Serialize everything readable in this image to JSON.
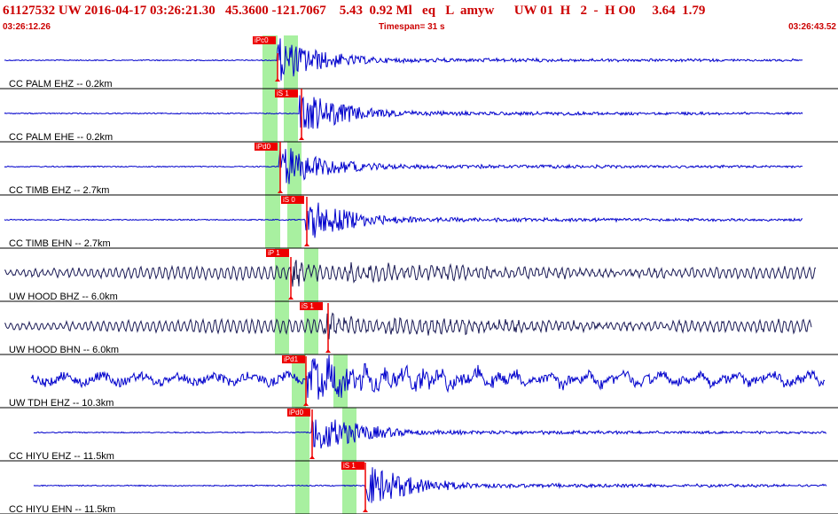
{
  "header": {
    "title": "61127532 UW 2016-04-17 03:26:21.30   45.3600 -121.7067    5.43  0.92 Ml   eq   L  amyw      UW 01  H   2  -  H O0     3.64  1.79",
    "start_time": "03:26:12.26",
    "timespan": "Timespan=  31 s",
    "end_time": "03:26:43.52"
  },
  "colors": {
    "title_red": "#cc0000",
    "pick_red": "#ee0000",
    "window_green": "#a8f0a0",
    "trace_blue": "#0000cc",
    "trace_navy": "#1a1a55",
    "separator": "#000000"
  },
  "traces": [
    {
      "label": "CC PALM EHZ -- 0.2km",
      "pick": "iPc0",
      "color": "blue"
    },
    {
      "label": "CC PALM EHE -- 0.2km",
      "pick": "iS 1",
      "color": "blue"
    },
    {
      "label": "CC TIMB EHZ -- 2.7km",
      "pick": "iPd0",
      "color": "blue"
    },
    {
      "label": "CC TIMB EHN -- 2.7km",
      "pick": "iS 0",
      "color": "blue"
    },
    {
      "label": "UW HOOD BHZ -- 6.0km",
      "pick": "iP 1",
      "color": "navy"
    },
    {
      "label": "UW HOOD BHN -- 6.0km",
      "pick": "iS 1",
      "color": "navy"
    },
    {
      "label": "UW TDH EHZ -- 10.3km",
      "pick": "iPd1",
      "color": "blue"
    },
    {
      "label": "CC HIYU EHZ -- 11.5km",
      "pick": "iPd0",
      "color": "blue"
    },
    {
      "label": "CC HIYU EHN -- 11.5km",
      "pick": "iS 1",
      "color": "blue"
    }
  ]
}
